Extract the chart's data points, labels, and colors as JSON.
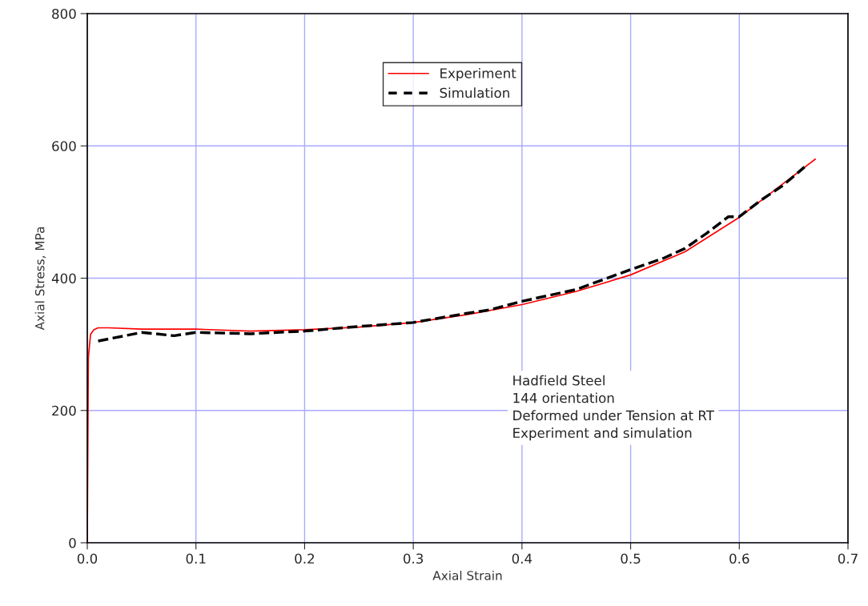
{
  "chart_data": {
    "type": "line",
    "xlabel": "Axial Strain",
    "ylabel": "Axial Stress, MPa",
    "xlim": [
      0,
      0.7
    ],
    "xticks": [
      {
        "value": 0,
        "label": "0.0"
      },
      0.1,
      0.2,
      0.3,
      0.4,
      0.5,
      0.6,
      0.7
    ],
    "ylim": [
      0,
      800
    ],
    "yticks": [
      0,
      200,
      400,
      600,
      800
    ],
    "grid": true,
    "legend": "top",
    "series": [
      {
        "name": "Experiment",
        "color": "#ff0000",
        "line_style": "solid",
        "x": [
          0,
          0.001,
          0.003,
          0.006,
          0.01,
          0.02,
          0.05,
          0.1,
          0.15,
          0.2,
          0.25,
          0.3,
          0.35,
          0.4,
          0.45,
          0.5,
          0.55,
          0.6,
          0.63,
          0.67
        ],
        "values": [
          0,
          280,
          315,
          322,
          325,
          325,
          323,
          323,
          320,
          322,
          326,
          333,
          345,
          360,
          380,
          405,
          440,
          492,
          530,
          580
        ]
      },
      {
        "name": "Simulation",
        "color": "#000000",
        "line_style": "dashed",
        "x": [
          0.01,
          0.05,
          0.08,
          0.1,
          0.15,
          0.2,
          0.25,
          0.3,
          0.35,
          0.37,
          0.4,
          0.45,
          0.5,
          0.53,
          0.55,
          0.57,
          0.59,
          0.6,
          0.62,
          0.64,
          0.66
        ],
        "values": [
          305,
          318,
          313,
          318,
          316,
          320,
          327,
          333,
          347,
          352,
          365,
          383,
          413,
          430,
          445,
          468,
          493,
          493,
          518,
          540,
          568
        ]
      }
    ],
    "annotations": [
      "Hadfield Steel",
      "144 orientation",
      "Deformed under Tension at RT",
      "Experiment and simulation"
    ]
  }
}
